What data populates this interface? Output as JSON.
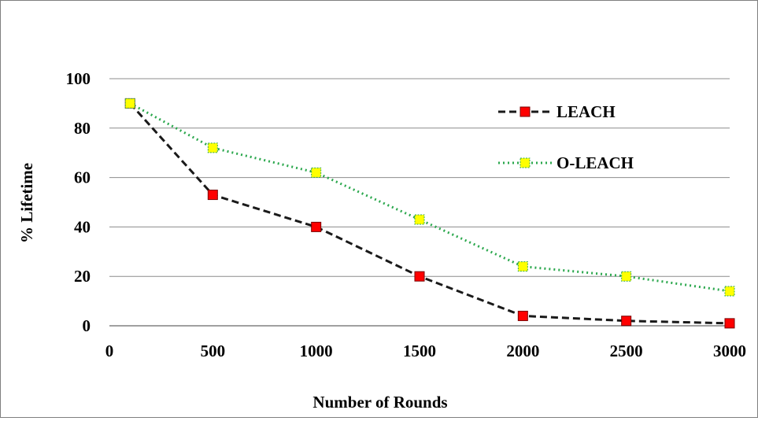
{
  "chart_data": {
    "type": "line",
    "xlabel": "Number of Rounds",
    "ylabel": "% Lifetime",
    "xlim": [
      0,
      3000
    ],
    "ylim": [
      0,
      100
    ],
    "x_ticks": [
      "0",
      "500",
      "1000",
      "1500",
      "2000",
      "2500",
      "3000"
    ],
    "y_ticks": [
      "0",
      "20",
      "40",
      "60",
      "80",
      "100"
    ],
    "grid": "horizontal",
    "legend_position": "top-right",
    "series": [
      {
        "name": "LEACH",
        "x": [
          100,
          500,
          1000,
          1500,
          2000,
          2500,
          3000
        ],
        "values": [
          90,
          53,
          40,
          20,
          4,
          2,
          1
        ],
        "line_color": "#1a1a1a",
        "marker_fill": "#ff0000",
        "line_style": "dashed"
      },
      {
        "name": "O-LEACH",
        "x": [
          100,
          500,
          1000,
          1500,
          2000,
          2500,
          3000
        ],
        "values": [
          90,
          72,
          62,
          43,
          24,
          20,
          14
        ],
        "line_color": "#2ca84e",
        "marker_fill": "#ffff00",
        "line_style": "dotted"
      }
    ]
  }
}
